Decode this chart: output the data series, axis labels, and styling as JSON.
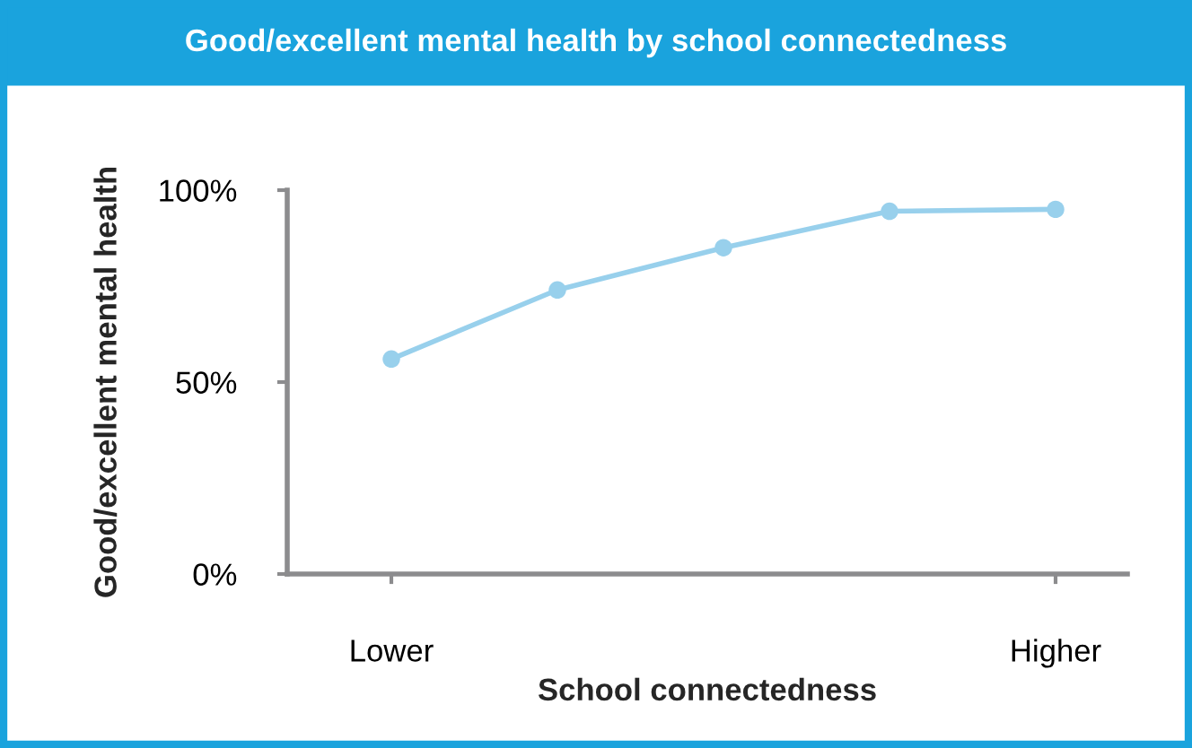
{
  "chart_data": {
    "type": "line",
    "title": "Good/excellent mental health by school connectedness",
    "xlabel": "School connectedness",
    "ylabel": "Good/excellent mental health",
    "categories": [
      "Lower",
      null,
      null,
      null,
      "Higher"
    ],
    "series": [
      {
        "color": "#98d0ec",
        "values": [
          56,
          74,
          85,
          94.5,
          95
        ]
      }
    ],
    "ylim": [
      0,
      100
    ],
    "yticks": [
      {
        "value": 0,
        "label": "0%"
      },
      {
        "value": 50,
        "label": "50%"
      },
      {
        "value": 100,
        "label": "100%"
      }
    ],
    "marker": "circle",
    "grid": false
  }
}
